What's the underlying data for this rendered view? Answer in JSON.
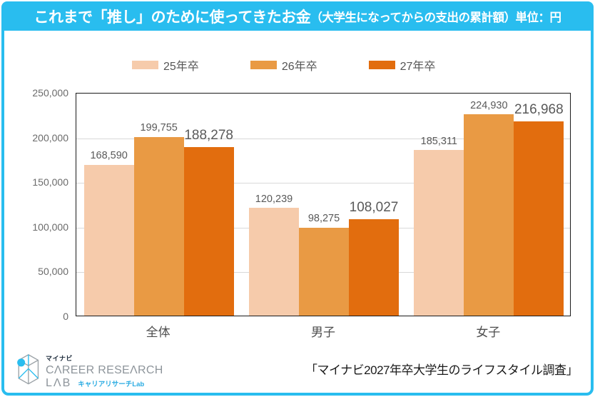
{
  "header": {
    "title_main": "これまで「推し」のために使ってきたお金",
    "title_sub": "（大学生になってからの支出の累計額）単位：円"
  },
  "chart_data": {
    "type": "bar",
    "title": "これまで「推し」のために使ってきたお金（大学生になってからの支出の累計額）単位：円",
    "unit": "円",
    "categories": [
      "全体",
      "男子",
      "女子"
    ],
    "series": [
      {
        "name": "25年卒",
        "color": "#F6CBAB",
        "values": [
          168590,
          120239,
          185311
        ]
      },
      {
        "name": "26年卒",
        "color": "#E99A44",
        "values": [
          199755,
          98275,
          224930
        ]
      },
      {
        "name": "27年卒",
        "color": "#E26D0E",
        "values": [
          188278,
          108027,
          216968
        ]
      }
    ],
    "ylim": [
      0,
      250000
    ],
    "ytick_step": 50000,
    "grid": true,
    "legend_position": "top"
  },
  "footer": {
    "logo": {
      "brand_top": "マイナビ",
      "brand_line1": "CΛREER RESEΛRCH",
      "brand_line2": "LΛB",
      "brand_sub": "キャリアリサーチLab"
    },
    "source": "「マイナビ2027年卒大学生のライフスタイル調査」"
  },
  "colors": {
    "accent_cyan": "#29BDEF",
    "bar_25": "#F6CBAB",
    "bar_26": "#E99A44",
    "bar_27": "#E26D0E",
    "grid": "#D9D9D9",
    "label_gray": "#595959"
  }
}
